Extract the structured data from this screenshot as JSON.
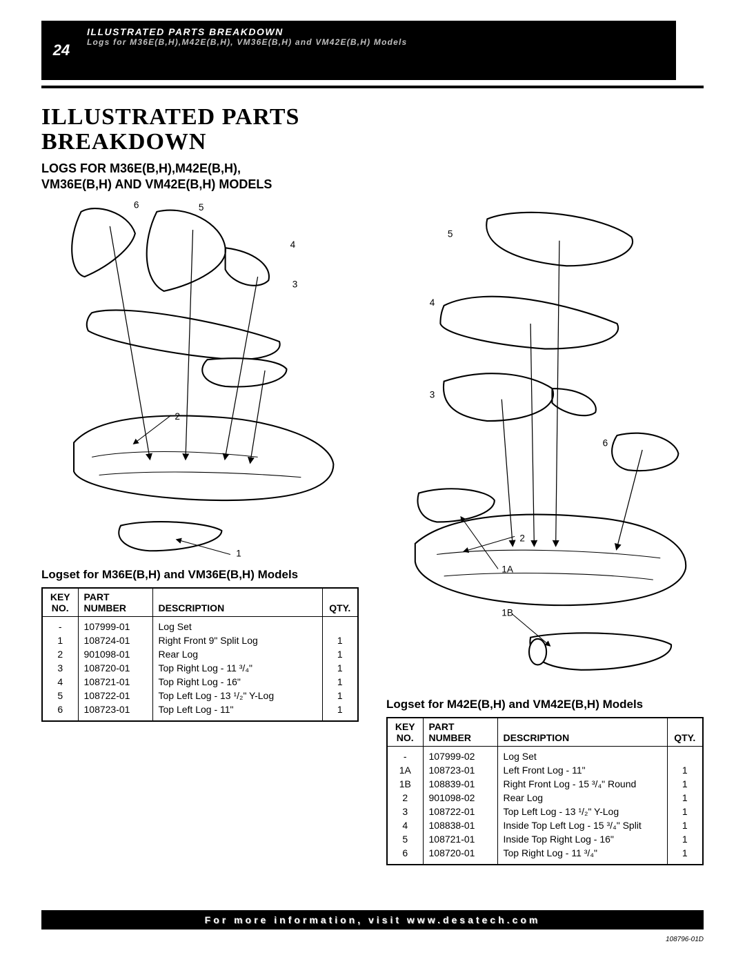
{
  "page_number": "24",
  "header": {
    "title": "ILLUSTRATED PARTS BREAKDOWN",
    "subtitle": "Logs for M36E(B,H),M42E(B,H), VM36E(B,H) and VM42E(B,H) Models"
  },
  "main_title_line1": "ILLUSTRATED PARTS",
  "main_title_line2": "BREAKDOWN",
  "sub_title_line1": "LOGS FOR M36E(B,H),M42E(B,H),",
  "sub_title_line2": "VM36E(B,H) AND VM42E(B,H) MODELS",
  "left": {
    "caption": "Logset for M36E(B,H) and VM36E(B,H) Models",
    "headers": {
      "c1a": "KEY",
      "c1b": "NO.",
      "c2a": "PART",
      "c2b": "NUMBER",
      "c3": "DESCRIPTION",
      "c4": "QTY."
    },
    "callouts": {
      "n1": "1",
      "n2": "2",
      "n3": "3",
      "n4": "4",
      "n5": "5",
      "n6": "6"
    },
    "rows": [
      {
        "key": "-",
        "part": "107999-01",
        "desc": "Log Set",
        "qty": ""
      },
      {
        "key": "1",
        "part": "108724-01",
        "desc": "Right Front 9\" Split Log",
        "qty": "1"
      },
      {
        "key": "2",
        "part": "901098-01",
        "desc": "Rear Log",
        "qty": "1"
      },
      {
        "key": "3",
        "part": "108720-01",
        "desc": "Top Right Log - 11 ³/₄\"",
        "qty": "1"
      },
      {
        "key": "4",
        "part": "108721-01",
        "desc": "Top Right Log - 16\"",
        "qty": "1"
      },
      {
        "key": "5",
        "part": "108722-01",
        "desc": "Top Left Log - 13 ¹/₂\" Y-Log",
        "qty": "1"
      },
      {
        "key": "6",
        "part": "108723-01",
        "desc": "Top Left Log - 11\"",
        "qty": "1"
      }
    ]
  },
  "right": {
    "caption": "Logset for M42E(B,H) and VM42E(B,H) Models",
    "headers": {
      "c1a": "KEY",
      "c1b": "NO.",
      "c2a": "PART",
      "c2b": "NUMBER",
      "c3": "DESCRIPTION",
      "c4": "QTY."
    },
    "callouts": {
      "n1a": "1A",
      "n1b": "1B",
      "n2": "2",
      "n3": "3",
      "n4": "4",
      "n5": "5",
      "n6": "6"
    },
    "rows": [
      {
        "key": "-",
        "part": "107999-02",
        "desc": "Log Set",
        "qty": ""
      },
      {
        "key": "1A",
        "part": "108723-01",
        "desc": "Left Front Log - 11\"",
        "qty": "1"
      },
      {
        "key": "1B",
        "part": "108839-01",
        "desc": "Right Front Log - 15 ³/₄\" Round",
        "qty": "1"
      },
      {
        "key": "2",
        "part": "901098-02",
        "desc": "Rear Log",
        "qty": "1"
      },
      {
        "key": "3",
        "part": "108722-01",
        "desc": "Top Left Log - 13 ¹/₂\" Y-Log",
        "qty": "1"
      },
      {
        "key": "4",
        "part": "108838-01",
        "desc": "Inside Top Left Log - 15 ³/₄\" Split",
        "qty": "1"
      },
      {
        "key": "5",
        "part": "108721-01",
        "desc": "Inside Top Right Log - 16\"",
        "qty": "1"
      },
      {
        "key": "6",
        "part": "108720-01",
        "desc": "Top Right Log - 11 ³/₄\"",
        "qty": "1"
      }
    ]
  },
  "footer": "For more information, visit www.desatech.com",
  "doc_id": "108796-01D",
  "colors": {
    "black": "#000000",
    "white": "#ffffff",
    "header_sub_gray": "#bfbfbf"
  }
}
